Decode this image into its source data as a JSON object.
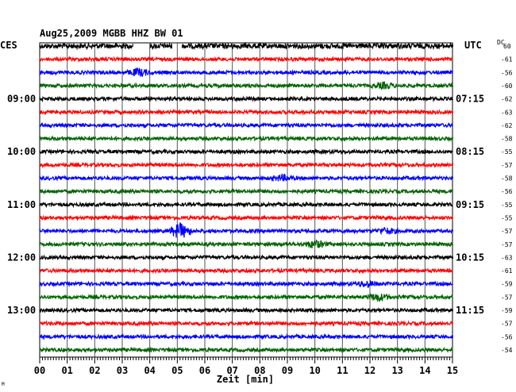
{
  "header": {
    "title": "Aug25,2009   MGBB HHZ BW 01",
    "left_zone": "CES",
    "right_zone": "UTC",
    "dc_label": "DC",
    "dc_sub": "60"
  },
  "footer": {
    "xlabel": "Zeit [min]",
    "corner_mark": "M"
  },
  "chart_data": {
    "type": "line",
    "title": "Aug25,2009   MGBB HHZ BW 01",
    "xlabel": "Zeit [min]",
    "ylabel": "",
    "x_ticks": [
      "00",
      "01",
      "02",
      "03",
      "04",
      "05",
      "06",
      "07",
      "08",
      "09",
      "10",
      "11",
      "12",
      "13",
      "14",
      "15"
    ],
    "xlim": [
      0,
      15
    ],
    "grid": true,
    "trace_colors": [
      "#000000",
      "#ff0000",
      "#0000ff",
      "#006400"
    ],
    "left_time_labels": [
      "09:00",
      "10:00",
      "11:00",
      "12:00",
      "13:00"
    ],
    "right_time_labels": [
      "07:15",
      "08:15",
      "09:15",
      "10:15",
      "11:15"
    ],
    "time_label_rows": [
      4,
      8,
      12,
      16,
      20
    ],
    "dc_offsets": [
      "-61",
      "-56",
      "-60",
      "-62",
      "-63",
      "-62",
      "-58",
      "-55",
      "-57",
      "-58",
      "-56",
      "-55",
      "-55",
      "-57",
      "-57",
      "-63",
      "-61",
      "-59",
      "-57",
      "-59",
      "-57",
      "-56",
      "-54"
    ],
    "dc_offset_rows": [
      1,
      2,
      3,
      4,
      5,
      6,
      7,
      8,
      9,
      10,
      11,
      12,
      13,
      14,
      15,
      16,
      17,
      18,
      19,
      20,
      21,
      22,
      23
    ],
    "num_traces": 24,
    "gaps_first_trace": [
      [
        3.4,
        4.0
      ],
      [
        4.8,
        5.15
      ]
    ],
    "events": [
      {
        "trace": 2,
        "minute": 3.6,
        "amp": 4
      },
      {
        "trace": 3,
        "minute": 12.5,
        "amp": 3
      },
      {
        "trace": 10,
        "minute": 8.8,
        "amp": 3
      },
      {
        "trace": 14,
        "minute": 5.1,
        "amp": 9
      },
      {
        "trace": 14,
        "minute": 12.6,
        "amp": 3
      },
      {
        "trace": 15,
        "minute": 10.0,
        "amp": 4
      },
      {
        "trace": 18,
        "minute": 11.9,
        "amp": 3
      },
      {
        "trace": 19,
        "minute": 12.3,
        "amp": 4
      }
    ]
  }
}
